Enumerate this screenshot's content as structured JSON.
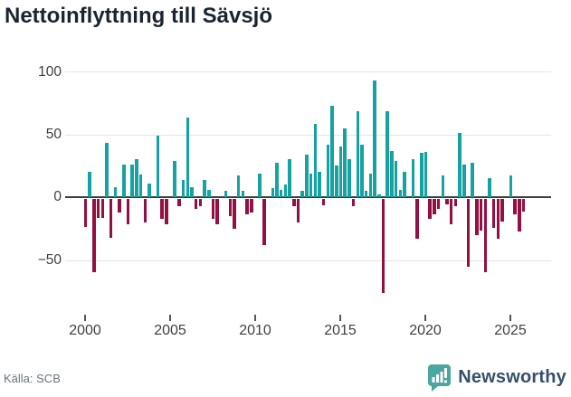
{
  "title": "Nettoinflyttning till Sävsjö",
  "source": "Källa: SCB",
  "branding": {
    "name": "Newsworthy",
    "logo_color": "#4AA6A1",
    "text_color": "#36506B"
  },
  "chart_data": {
    "type": "bar",
    "title": "Nettoinflyttning till Sävsjö",
    "xlabel": "",
    "ylabel": "",
    "frequency": "quarterly",
    "grid": true,
    "ylim": [
      -85,
      105
    ],
    "y_ticks": [
      100,
      50,
      0,
      -50
    ],
    "y_tick_labels": [
      "100",
      "50",
      "0",
      "−50"
    ],
    "x_tick_labels": [
      "2000",
      "2005",
      "2010",
      "2015",
      "2020",
      "2025"
    ],
    "positive_color": "#17A2A2",
    "negative_color": "#931043",
    "categories": [
      "2000Q1",
      "2000Q2",
      "2000Q3",
      "2000Q4",
      "2001Q1",
      "2001Q2",
      "2001Q3",
      "2001Q4",
      "2002Q1",
      "2002Q2",
      "2002Q3",
      "2002Q4",
      "2003Q1",
      "2003Q2",
      "2003Q3",
      "2003Q4",
      "2004Q1",
      "2004Q2",
      "2004Q3",
      "2004Q4",
      "2005Q1",
      "2005Q2",
      "2005Q3",
      "2005Q4",
      "2006Q1",
      "2006Q2",
      "2006Q3",
      "2006Q4",
      "2007Q1",
      "2007Q2",
      "2007Q3",
      "2007Q4",
      "2008Q1",
      "2008Q2",
      "2008Q3",
      "2008Q4",
      "2009Q1",
      "2009Q2",
      "2009Q3",
      "2009Q4",
      "2010Q1",
      "2010Q2",
      "2010Q3",
      "2010Q4",
      "2011Q1",
      "2011Q2",
      "2011Q3",
      "2011Q4",
      "2012Q1",
      "2012Q2",
      "2012Q3",
      "2012Q4",
      "2013Q1",
      "2013Q2",
      "2013Q3",
      "2013Q4",
      "2014Q1",
      "2014Q2",
      "2014Q3",
      "2014Q4",
      "2015Q1",
      "2015Q2",
      "2015Q3",
      "2015Q4",
      "2016Q1",
      "2016Q2",
      "2016Q3",
      "2016Q4",
      "2017Q1",
      "2017Q2",
      "2017Q3",
      "2017Q4",
      "2018Q1",
      "2018Q2",
      "2018Q3",
      "2018Q4",
      "2019Q1",
      "2019Q2",
      "2019Q3",
      "2019Q4",
      "2020Q1",
      "2020Q2",
      "2020Q3",
      "2020Q4",
      "2021Q1",
      "2021Q2",
      "2021Q3",
      "2021Q4",
      "2022Q1",
      "2022Q2",
      "2022Q3",
      "2022Q4",
      "2023Q1",
      "2023Q2",
      "2023Q3",
      "2023Q4",
      "2024Q1",
      "2024Q2",
      "2024Q3",
      "2024Q4",
      "2025Q1",
      "2025Q2",
      "2025Q3",
      "2025Q4"
    ],
    "values": [
      -22,
      20,
      -58,
      -15,
      -15,
      43,
      -31,
      8,
      -11,
      26,
      -20,
      26,
      30,
      18,
      -19,
      11,
      0,
      49,
      -16,
      -20,
      0,
      29,
      -6,
      14,
      63,
      8,
      -8,
      -6,
      14,
      6,
      -16,
      -20,
      0,
      5,
      -14,
      -24,
      17,
      5,
      -12,
      -11,
      0,
      19,
      -37,
      0,
      7,
      27,
      6,
      10,
      30,
      -6,
      -19,
      5,
      34,
      19,
      58,
      20,
      -5,
      42,
      73,
      25,
      40,
      55,
      30,
      -6,
      68,
      42,
      5,
      19,
      93,
      2,
      -75,
      68,
      37,
      29,
      6,
      20,
      0,
      30,
      -32,
      35,
      36,
      -16,
      -12,
      -8,
      17,
      -4,
      -20,
      -6,
      51,
      26,
      -54,
      27,
      -29,
      -25,
      -58,
      15,
      -23,
      -32,
      -18,
      0,
      17,
      -12,
      -26,
      -10
    ]
  }
}
